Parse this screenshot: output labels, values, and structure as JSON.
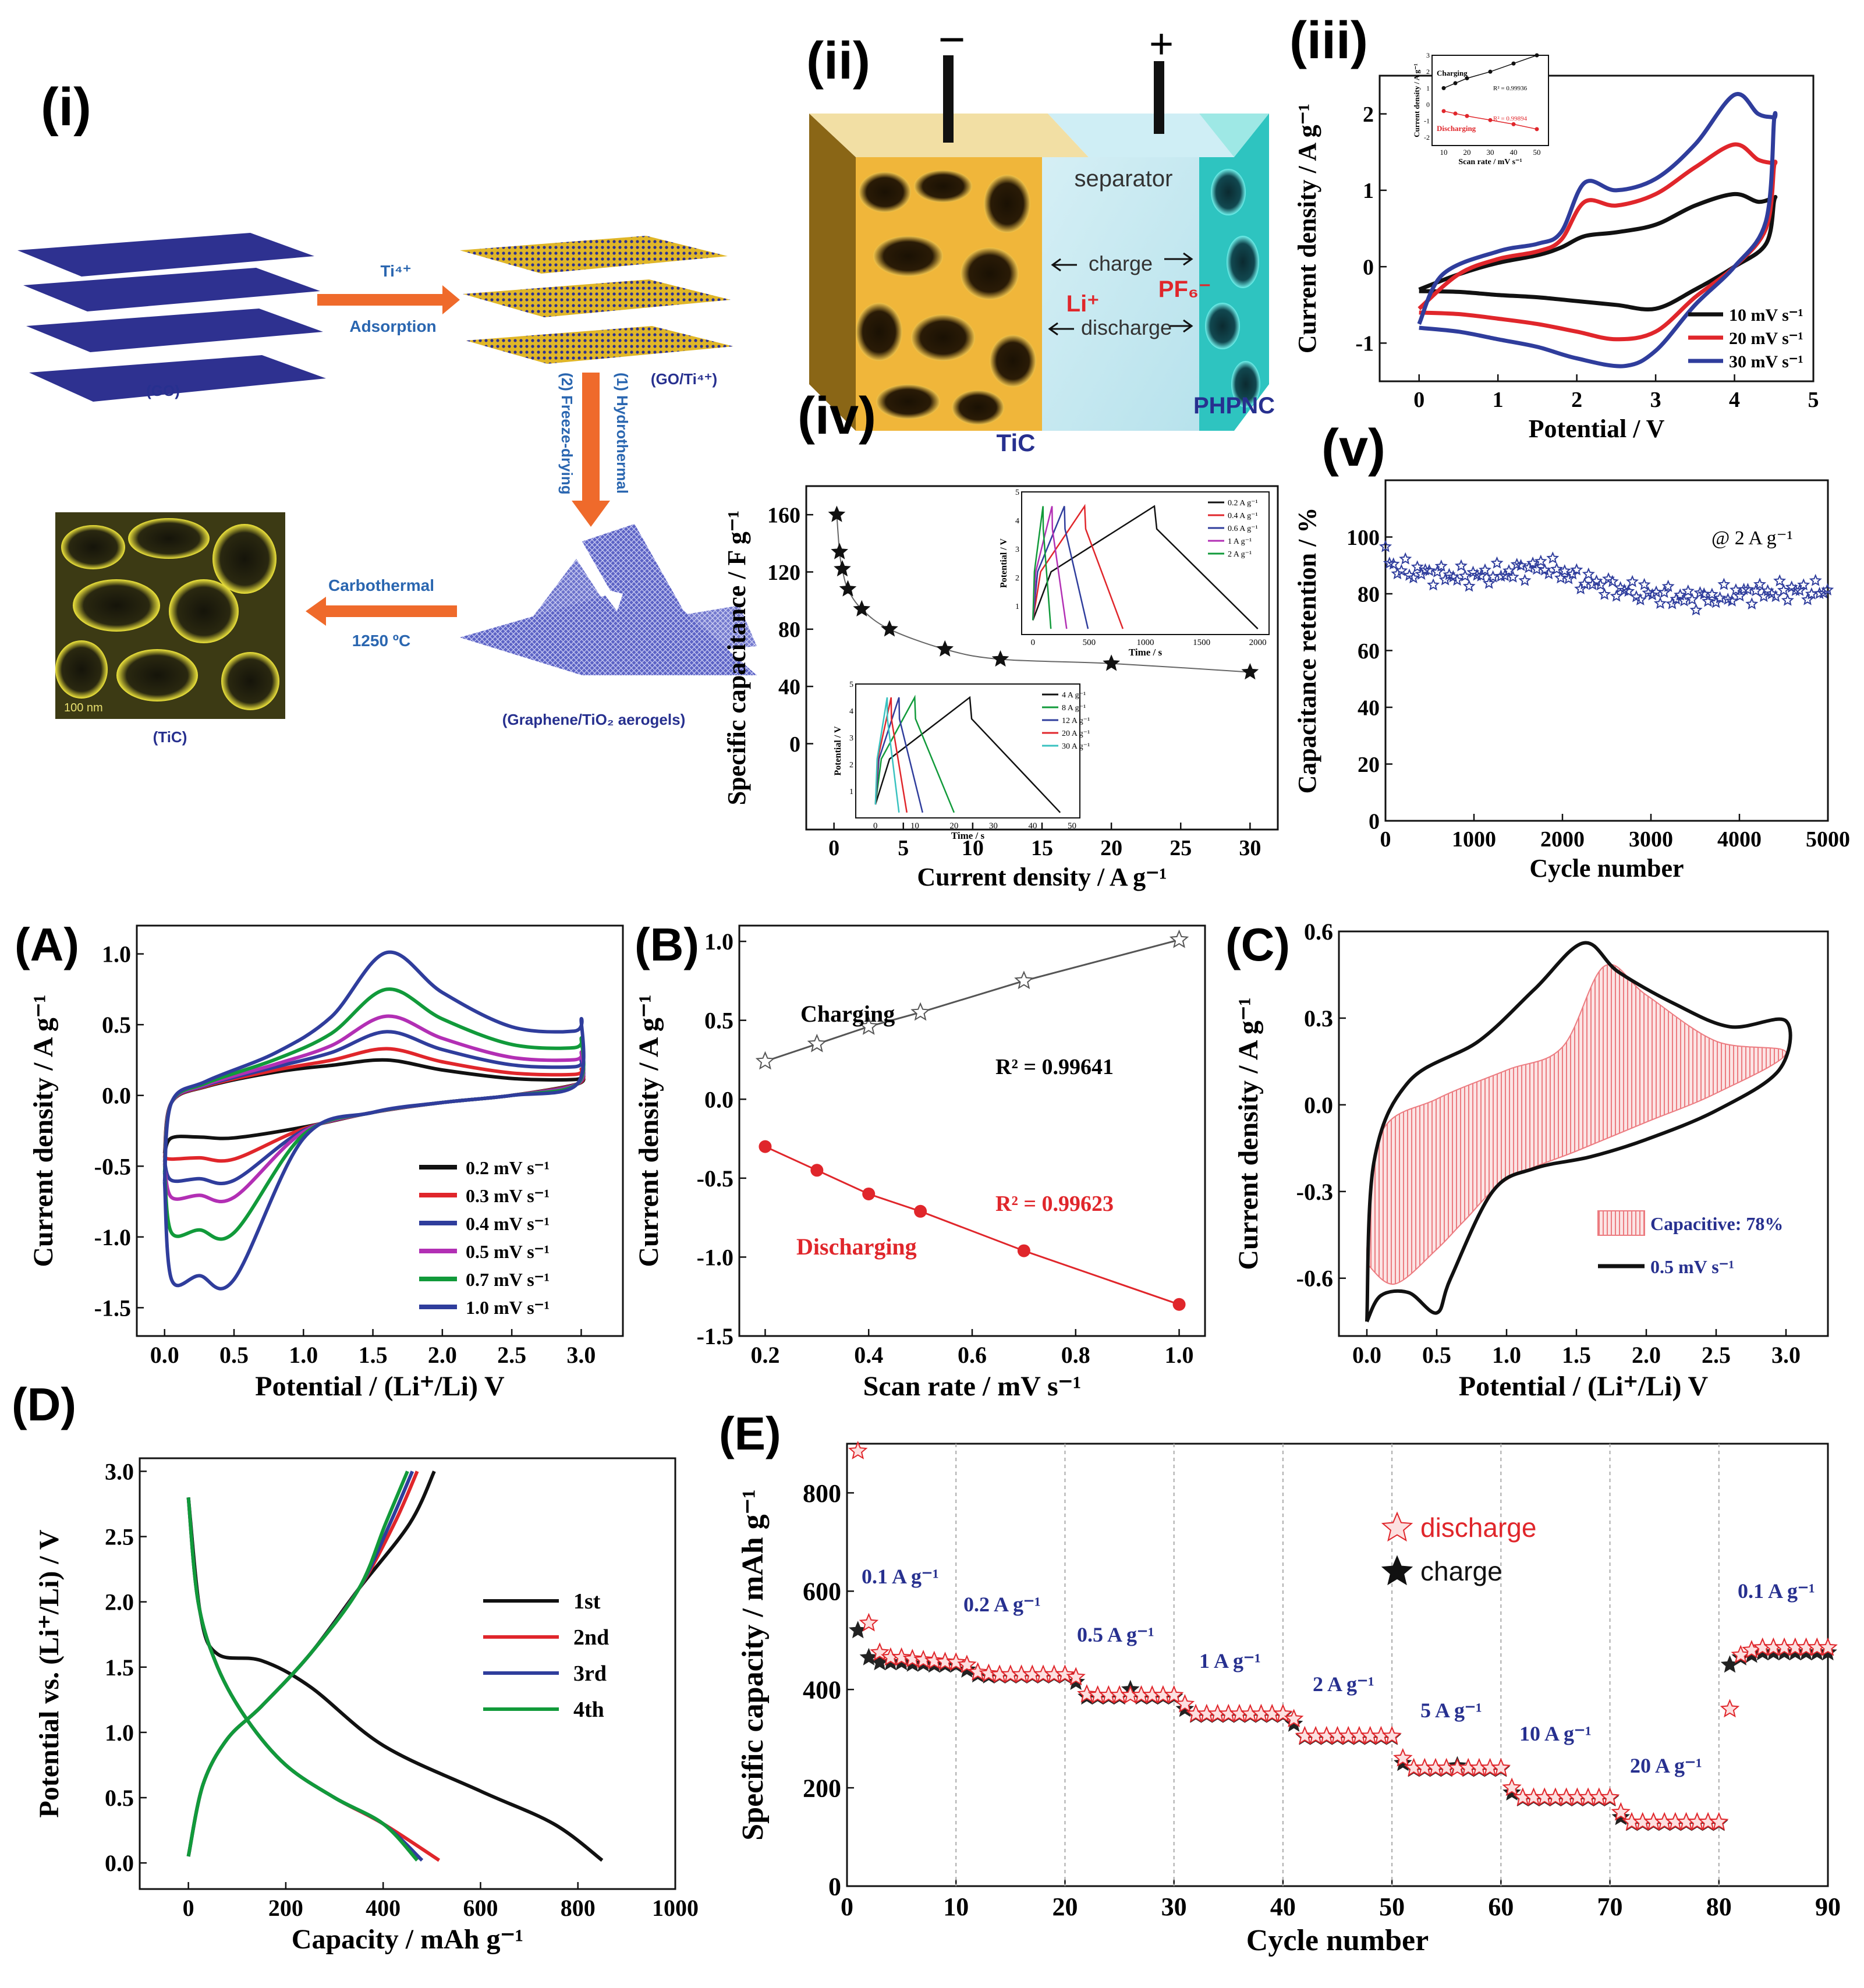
{
  "colors": {
    "black": "#111111",
    "red": "#e0262b",
    "blue": "#2f3d9c",
    "green": "#119a3a",
    "magenta": "#b22fb4",
    "orange": "#ef6a2b",
    "title_blue": "#2a66b0",
    "gold": "#e8b331",
    "cyan": "#39c2c0",
    "navy": "#27308f"
  },
  "panel_i": {
    "label": "(i)",
    "ti_label": "Ti⁴⁺",
    "adsorption": "Adsorption",
    "go": "(GO)",
    "go_ti": "(GO/Ti⁴⁺)",
    "hydrothermal": "(1) Hydrothermal",
    "freeze": "(2) Freeze-drying",
    "carbothermal": "Carbothermal",
    "temp": "1250 ºC",
    "aerogel": "(Graphene/TiO₂ aerogels)",
    "tic": "(TiC)",
    "scale": "100 nm"
  },
  "panel_ii": {
    "label": "(ii)",
    "minus": "−",
    "plus": "+",
    "separator": "separator",
    "charge": "charge",
    "discharge": "discharge",
    "li": "Li⁺",
    "pf6": "PF₆⁻",
    "tic": "TiC",
    "phpnc": "PHPNC"
  },
  "chart_data": [
    {
      "id": "iii",
      "label": "(iii)",
      "type": "line",
      "xlabel": "Potential / V",
      "ylabel": "Current density / A g⁻¹",
      "xlim": [
        -0.5,
        5
      ],
      "ylim": [
        -1.5,
        2.5
      ],
      "xticks": [
        "0",
        "1",
        "2",
        "3",
        "4",
        "5"
      ],
      "yticks": [
        "-1",
        "0",
        "1",
        "2"
      ],
      "legend": [
        "10 mV s⁻¹",
        "20 mV s⁻¹",
        "30 mV s⁻¹"
      ],
      "series": [
        {
          "name": "10 mV s⁻¹",
          "color": "black",
          "forward": [
            [
              0.0,
              -0.3
            ],
            [
              0.5,
              -0.1
            ],
            [
              1.0,
              0.05
            ],
            [
              1.5,
              0.15
            ],
            [
              1.8,
              0.25
            ],
            [
              2.1,
              0.4
            ],
            [
              2.5,
              0.45
            ],
            [
              3.0,
              0.55
            ],
            [
              3.5,
              0.8
            ],
            [
              4.0,
              0.95
            ],
            [
              4.3,
              0.85
            ],
            [
              4.5,
              0.9
            ]
          ],
          "reverse": [
            [
              4.5,
              0.85
            ],
            [
              4.4,
              0.3
            ],
            [
              4.0,
              0.0
            ],
            [
              3.5,
              -0.3
            ],
            [
              3.0,
              -0.55
            ],
            [
              2.5,
              -0.5
            ],
            [
              2.0,
              -0.45
            ],
            [
              1.5,
              -0.4
            ],
            [
              1.0,
              -0.37
            ],
            [
              0.5,
              -0.33
            ],
            [
              0.0,
              -0.32
            ]
          ]
        },
        {
          "name": "20 mV s⁻¹",
          "color": "red",
          "forward": [
            [
              0.0,
              -0.55
            ],
            [
              0.5,
              -0.1
            ],
            [
              1.0,
              0.1
            ],
            [
              1.5,
              0.2
            ],
            [
              1.8,
              0.35
            ],
            [
              2.1,
              0.85
            ],
            [
              2.5,
              0.8
            ],
            [
              3.0,
              0.95
            ],
            [
              3.5,
              1.3
            ],
            [
              4.0,
              1.6
            ],
            [
              4.3,
              1.4
            ],
            [
              4.5,
              1.35
            ]
          ],
          "reverse": [
            [
              4.5,
              1.3
            ],
            [
              4.4,
              0.5
            ],
            [
              4.0,
              0.0
            ],
            [
              3.5,
              -0.4
            ],
            [
              3.0,
              -0.85
            ],
            [
              2.5,
              -0.95
            ],
            [
              2.0,
              -0.85
            ],
            [
              1.5,
              -0.75
            ],
            [
              1.0,
              -0.68
            ],
            [
              0.5,
              -0.62
            ],
            [
              0.0,
              -0.6
            ]
          ]
        },
        {
          "name": "30 mV s⁻¹",
          "color": "blue",
          "forward": [
            [
              0.0,
              -0.75
            ],
            [
              0.3,
              -0.1
            ],
            [
              1.0,
              0.2
            ],
            [
              1.5,
              0.3
            ],
            [
              1.8,
              0.45
            ],
            [
              2.1,
              1.1
            ],
            [
              2.5,
              1.0
            ],
            [
              3.0,
              1.15
            ],
            [
              3.5,
              1.6
            ],
            [
              4.0,
              2.25
            ],
            [
              4.3,
              2.0
            ],
            [
              4.5,
              1.95
            ]
          ],
          "reverse": [
            [
              4.5,
              1.9
            ],
            [
              4.4,
              0.6
            ],
            [
              4.0,
              0.0
            ],
            [
              3.5,
              -0.5
            ],
            [
              3.0,
              -1.1
            ],
            [
              2.6,
              -1.3
            ],
            [
              2.0,
              -1.2
            ],
            [
              1.5,
              -1.05
            ],
            [
              1.0,
              -0.95
            ],
            [
              0.5,
              -0.85
            ],
            [
              0.0,
              -0.8
            ]
          ]
        }
      ],
      "inset": {
        "xlabel": "Scan rate / mV s⁻¹",
        "ylabel": "Current density / A g⁻¹",
        "xlim": [
          5,
          55
        ],
        "ylim": [
          -2.5,
          3
        ],
        "xticks": [
          "10",
          "20",
          "30",
          "40",
          "50"
        ],
        "yticks": [
          "-2",
          "-1",
          "0",
          "1",
          "2",
          "3"
        ],
        "charging": {
          "name": "Charging",
          "r2": "R² = 0.99936",
          "x": [
            10,
            15,
            20,
            30,
            40,
            50
          ],
          "y": [
            1.0,
            1.3,
            1.6,
            2.0,
            2.5,
            3.0
          ]
        },
        "discharging": {
          "name": "Discharging",
          "r2": "R² = 0.99894",
          "x": [
            10,
            15,
            20,
            30,
            40,
            50
          ],
          "y": [
            -0.4,
            -0.55,
            -0.7,
            -0.95,
            -1.2,
            -1.5
          ]
        }
      }
    },
    {
      "id": "iv",
      "label": "(iv)",
      "type": "scatter",
      "xlabel": "Current density / A g⁻¹",
      "ylabel": "Specific capacitance / F g⁻¹",
      "xlim": [
        -2,
        32
      ],
      "ylim": [
        -60,
        180
      ],
      "xticks": [
        "0",
        "5",
        "10",
        "15",
        "20",
        "25",
        "30"
      ],
      "yticks": [
        "0",
        "40",
        "80",
        "120",
        "160"
      ],
      "x": [
        0.2,
        0.4,
        0.6,
        1,
        2,
        4,
        8,
        12,
        20,
        30
      ],
      "y": [
        160,
        134,
        122,
        108,
        94,
        80,
        66,
        59,
        56,
        50
      ],
      "inset1": {
        "xlabel": "Time / s",
        "ylabel": "Potential / V",
        "xlim": [
          -100,
          2100
        ],
        "ylim": [
          0,
          5
        ],
        "xticks": [
          "0",
          "500",
          "1000",
          "1500",
          "2000"
        ],
        "yticks": [
          "1",
          "2",
          "3",
          "4",
          "5"
        ],
        "legend": [
          "0.2 A g⁻¹",
          "0.4 A g⁻¹",
          "0.6 A g⁻¹",
          "1 A g⁻¹",
          "2 A g⁻¹"
        ],
        "peaks": [
          1080,
          460,
          280,
          170,
          90
        ],
        "ends": [
          2000,
          800,
          490,
          300,
          160
        ],
        "colors": [
          "black",
          "red",
          "blue",
          "magenta",
          "green"
        ]
      },
      "inset2": {
        "xlabel": "Time / s",
        "ylabel": "Potential / V",
        "xlim": [
          -5,
          52
        ],
        "ylim": [
          0,
          5
        ],
        "xticks": [
          "0",
          "10",
          "20",
          "30",
          "40",
          "50"
        ],
        "yticks": [
          "1",
          "2",
          "3",
          "4",
          "5"
        ],
        "legend": [
          "4 A g⁻¹",
          "8 A g⁻¹",
          "12 A g⁻¹",
          "20 A g⁻¹",
          "30 A g⁻¹"
        ],
        "peaks": [
          24,
          10,
          6,
          4,
          3
        ],
        "ends": [
          47,
          20,
          12,
          8,
          6
        ],
        "colors": [
          "black",
          "green",
          "blue",
          "red",
          "cyan"
        ]
      }
    },
    {
      "id": "v",
      "label": "(v)",
      "type": "scatter",
      "xlabel": "Cycle number",
      "ylabel": "Capacitance retention / %",
      "xlim": [
        0,
        5000
      ],
      "ylim": [
        0,
        120
      ],
      "xticks": [
        "0",
        "1000",
        "2000",
        "3000",
        "4000",
        "5000"
      ],
      "yticks": [
        "0",
        "20",
        "40",
        "60",
        "80",
        "100"
      ],
      "annotation": "@ 2 A g⁻¹",
      "trend_x": [
        0,
        100,
        500,
        1000,
        1500,
        1800,
        2200,
        2600,
        3000,
        3500,
        4000,
        4500,
        5000
      ],
      "trend_y": [
        95,
        89,
        87,
        86,
        88,
        90,
        85,
        82,
        80,
        78,
        80,
        81,
        81
      ]
    },
    {
      "id": "A",
      "label": "(A)",
      "type": "line",
      "xlabel": "Potential / (Li⁺/Li) V",
      "ylabel": "Current density / A g⁻¹",
      "xlim": [
        -0.2,
        3.3
      ],
      "ylim": [
        -1.7,
        1.2
      ],
      "xticks": [
        "0.0",
        "0.5",
        "1.0",
        "1.5",
        "2.0",
        "2.5",
        "3.0"
      ],
      "yticks": [
        "-1.5",
        "-1.0",
        "-0.5",
        "0.0",
        "0.5",
        "1.0"
      ],
      "legend": [
        "0.2 mV s⁻¹",
        "0.3 mV s⁻¹",
        "0.4 mV s⁻¹",
        "0.5 mV s⁻¹",
        "0.7 mV s⁻¹",
        "1.0 mV s⁻¹"
      ],
      "colors": [
        "black",
        "red",
        "blue",
        "magenta",
        "green",
        "blue"
      ],
      "anodic_peaks": [
        0.25,
        0.33,
        0.45,
        0.56,
        0.75,
        1.01
      ],
      "cathodic_peaks": [
        -0.3,
        -0.45,
        -0.6,
        -0.72,
        -0.97,
        -1.3
      ]
    },
    {
      "id": "B",
      "label": "(B)",
      "type": "scatter",
      "xlabel": "Scan rate / mV s⁻¹",
      "ylabel": "Current density / A g⁻¹",
      "xlim": [
        0.15,
        1.05
      ],
      "ylim": [
        -1.5,
        1.1
      ],
      "xticks": [
        "0.2",
        "0.4",
        "0.6",
        "0.8",
        "1.0"
      ],
      "yticks": [
        "-1.5",
        "-1.0",
        "-0.5",
        "0.0",
        "0.5",
        "1.0"
      ],
      "x": [
        0.2,
        0.3,
        0.4,
        0.5,
        0.7,
        1.0
      ],
      "series": [
        {
          "name": "Charging",
          "r2": "R² = 0.99641",
          "values": [
            0.24,
            0.35,
            0.46,
            0.55,
            0.75,
            1.01
          ]
        },
        {
          "name": "Discharging",
          "r2": "R² = 0.99623",
          "values": [
            -0.3,
            -0.45,
            -0.6,
            -0.71,
            -0.96,
            -1.3
          ]
        }
      ]
    },
    {
      "id": "C",
      "label": "(C)",
      "type": "area",
      "xlabel": "Potential / (Li⁺/Li) V",
      "ylabel": "Current density / A g⁻¹",
      "xlim": [
        -0.2,
        3.3
      ],
      "ylim": [
        -0.8,
        0.6
      ],
      "xticks": [
        "0.0",
        "0.5",
        "1.0",
        "1.5",
        "2.0",
        "2.5",
        "3.0"
      ],
      "yticks": [
        "-0.6",
        "-0.3",
        "0.0",
        "0.3",
        "0.6"
      ],
      "legend": [
        "Capacitive: 78%",
        "0.5 mV s⁻¹"
      ],
      "total_forward": [
        [
          0.0,
          -0.75
        ],
        [
          0.05,
          -0.2
        ],
        [
          0.3,
          0.08
        ],
        [
          0.8,
          0.22
        ],
        [
          1.2,
          0.4
        ],
        [
          1.55,
          0.56
        ],
        [
          1.8,
          0.46
        ],
        [
          2.2,
          0.35
        ],
        [
          2.6,
          0.27
        ],
        [
          3.0,
          0.29
        ]
      ],
      "total_reverse": [
        [
          3.0,
          0.29
        ],
        [
          2.95,
          0.12
        ],
        [
          2.5,
          -0.02
        ],
        [
          2.0,
          -0.12
        ],
        [
          1.6,
          -0.18
        ],
        [
          1.2,
          -0.22
        ],
        [
          0.9,
          -0.3
        ],
        [
          0.6,
          -0.6
        ],
        [
          0.5,
          -0.72
        ],
        [
          0.3,
          -0.65
        ],
        [
          0.1,
          -0.66
        ],
        [
          0.0,
          -0.75
        ]
      ],
      "cap_forward": [
        [
          0.0,
          -0.5
        ],
        [
          0.1,
          -0.1
        ],
        [
          0.5,
          0.02
        ],
        [
          1.0,
          0.12
        ],
        [
          1.4,
          0.2
        ],
        [
          1.7,
          0.48
        ],
        [
          2.0,
          0.38
        ],
        [
          2.5,
          0.22
        ],
        [
          3.0,
          0.18
        ]
      ],
      "cap_reverse": [
        [
          3.0,
          0.18
        ],
        [
          2.5,
          0.04
        ],
        [
          2.0,
          -0.06
        ],
        [
          1.5,
          -0.16
        ],
        [
          1.0,
          -0.26
        ],
        [
          0.7,
          -0.4
        ],
        [
          0.5,
          -0.5
        ],
        [
          0.2,
          -0.62
        ],
        [
          0.0,
          -0.55
        ]
      ]
    },
    {
      "id": "D",
      "label": "(D)",
      "type": "line",
      "xlabel": "Capacity / mAh g⁻¹",
      "ylabel": "Potential vs. (Li⁺/Li) / V",
      "xlim": [
        -100,
        1000
      ],
      "ylim": [
        -0.2,
        3.1
      ],
      "xticks": [
        "0",
        "200",
        "400",
        "600",
        "800",
        "1000"
      ],
      "yticks": [
        "0.0",
        "0.5",
        "1.0",
        "1.5",
        "2.0",
        "2.5",
        "3.0"
      ],
      "legend": [
        "1st",
        "2nd",
        "3rd",
        "4th"
      ],
      "colors": [
        "black",
        "red",
        "blue",
        "green"
      ],
      "discharge_ends": [
        850,
        515,
        480,
        470
      ],
      "charge_ends": [
        505,
        470,
        460,
        450
      ]
    },
    {
      "id": "E",
      "label": "(E)",
      "type": "scatter",
      "xlabel": "Cycle number",
      "ylabel": "Specific capacity / mAh g⁻¹",
      "xlim": [
        0,
        90
      ],
      "ylim": [
        0,
        900
      ],
      "xticks": [
        "0",
        "10",
        "20",
        "30",
        "40",
        "50",
        "60",
        "70",
        "80",
        "90"
      ],
      "yticks": [
        "0",
        "200",
        "400",
        "600",
        "800"
      ],
      "legend": [
        "discharge",
        "charge"
      ],
      "rates": [
        "0.1 A g⁻¹",
        "0.2 A g⁻¹",
        "0.5 A g⁻¹",
        "1 A g⁻¹",
        "2 A g⁻¹",
        "5 A g⁻¹",
        "10 A g⁻¹",
        "20 A g⁻¹",
        "0.1 A g⁻¹"
      ],
      "discharge": [
        885,
        535,
        475,
        465,
        465,
        462,
        460,
        458,
        456,
        455,
        450,
        435,
        432,
        430,
        430,
        430,
        430,
        430,
        430,
        430,
        425,
        390,
        388,
        388,
        388,
        388,
        388,
        388,
        388,
        388,
        370,
        350,
        350,
        350,
        350,
        350,
        350,
        350,
        350,
        350,
        340,
        305,
        305,
        305,
        305,
        305,
        305,
        305,
        305,
        305,
        260,
        240,
        240,
        240,
        240,
        240,
        240,
        240,
        240,
        240,
        200,
        180,
        180,
        180,
        180,
        180,
        180,
        180,
        180,
        180,
        150,
        130,
        130,
        130,
        130,
        130,
        130,
        130,
        130,
        130,
        360,
        470,
        480,
        485,
        485,
        485,
        485,
        485,
        485,
        485
      ],
      "charge": [
        520,
        465,
        455,
        455,
        455,
        452,
        452,
        450,
        450,
        450,
        440,
        430,
        428,
        428,
        428,
        428,
        428,
        428,
        428,
        428,
        415,
        385,
        385,
        385,
        385,
        400,
        385,
        385,
        385,
        385,
        360,
        348,
        348,
        348,
        348,
        348,
        348,
        348,
        348,
        348,
        330,
        303,
        303,
        303,
        303,
        303,
        303,
        303,
        303,
        303,
        250,
        238,
        238,
        238,
        238,
        245,
        238,
        238,
        238,
        238,
        190,
        178,
        178,
        178,
        178,
        178,
        178,
        178,
        178,
        178,
        140,
        128,
        128,
        128,
        128,
        128,
        128,
        128,
        128,
        128,
        450,
        465,
        470,
        475,
        475,
        475,
        475,
        475,
        475,
        475
      ]
    }
  ]
}
